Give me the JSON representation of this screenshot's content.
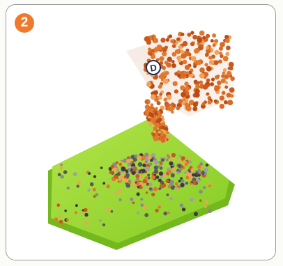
{
  "step": {
    "number": "2"
  },
  "bag": {
    "label": "D"
  },
  "colors": {
    "badge": "#ef7a2c",
    "tray": "#9ad92f",
    "tray_edge": "#7cc11f",
    "beads": "#e0782e",
    "frame_border": "#9b9b9b",
    "label_ink": "#1e2a55"
  }
}
